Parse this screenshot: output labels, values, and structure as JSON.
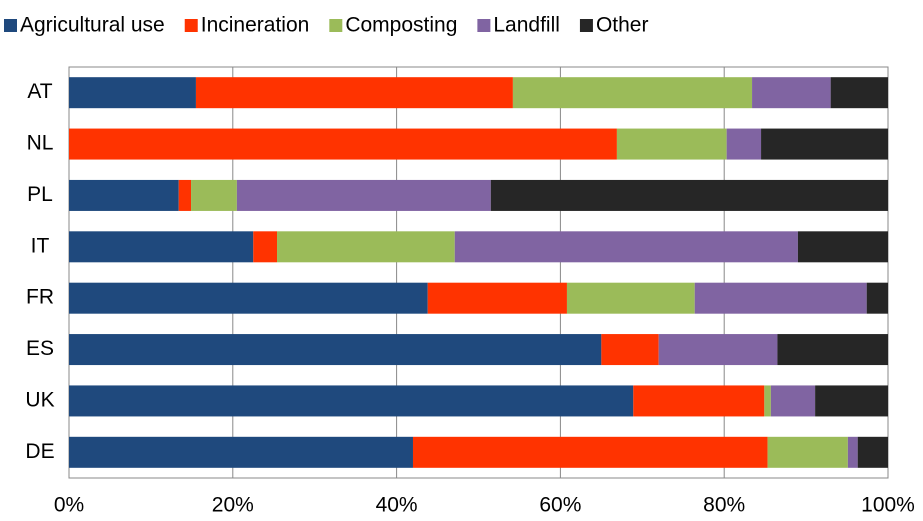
{
  "chart_data": {
    "type": "stacked-bar-horizontal",
    "categories": [
      "AT",
      "NL",
      "PL",
      "IT",
      "FR",
      "ES",
      "UK",
      "DE"
    ],
    "series": [
      {
        "name": "Agricultural use",
        "color": "#1f497d",
        "values": [
          15.5,
          0,
          13.4,
          22.5,
          43.8,
          65,
          68.9,
          42.0
        ]
      },
      {
        "name": "Incineration",
        "color": "#ff3300",
        "values": [
          38.7,
          66.9,
          1.5,
          2.9,
          17.0,
          7,
          16.0,
          43.3
        ]
      },
      {
        "name": "Composting",
        "color": "#9bbb59",
        "values": [
          29.2,
          13.4,
          5.6,
          21.7,
          15.6,
          0,
          0.8,
          9.8
        ]
      },
      {
        "name": "Landfill",
        "color": "#8064a2",
        "values": [
          9.6,
          4.2,
          31.0,
          41.9,
          21.0,
          14.5,
          5.4,
          1.2
        ]
      },
      {
        "name": "Other",
        "color": "#262626",
        "values": [
          7.0,
          15.5,
          48.5,
          11.0,
          2.6,
          13.5,
          8.9,
          3.7
        ]
      }
    ],
    "xlim": [
      0,
      100
    ],
    "xticks": [
      {
        "value": 0,
        "label": "0%"
      },
      {
        "value": 20,
        "label": "20%"
      },
      {
        "value": 40,
        "label": "40%"
      },
      {
        "value": 60,
        "label": "60%"
      },
      {
        "value": 80,
        "label": "80%"
      },
      {
        "value": 100,
        "label": "100%"
      }
    ],
    "grid": true
  }
}
